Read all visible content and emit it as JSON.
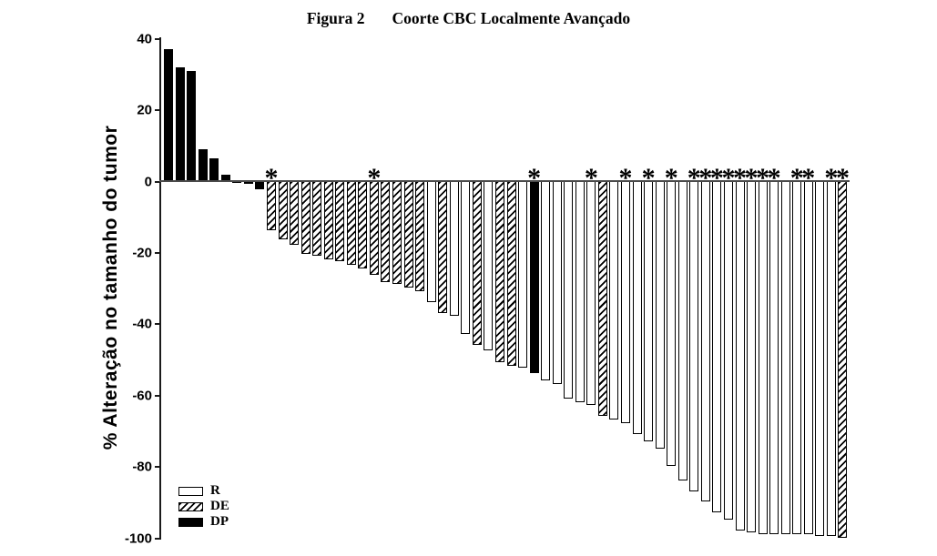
{
  "chart_data": {
    "type": "bar",
    "subtype": "waterfall",
    "figure_label": "Figura 2",
    "title": "Coorte CBC Localmente Avançado",
    "ylabel": "% Alteração no tamanho do tumor",
    "ylim": [
      -100,
      40
    ],
    "yticks": [
      40,
      20,
      0,
      -20,
      -40,
      -60,
      -80,
      -100
    ],
    "grid": false,
    "legend_position": "lower-left-inside",
    "asterisk_symbol": "*",
    "legend": [
      {
        "label": "R",
        "group": "R",
        "pattern": "solid-white"
      },
      {
        "label": "DE",
        "group": "DE",
        "pattern": "diagonal-hatch"
      },
      {
        "label": "DP",
        "group": "DP",
        "pattern": "solid-black"
      }
    ],
    "bars": [
      {
        "value": 37,
        "group": "DP",
        "asterisk": false
      },
      {
        "value": 32,
        "group": "DP",
        "asterisk": false
      },
      {
        "value": 31,
        "group": "DP",
        "asterisk": false
      },
      {
        "value": 9,
        "group": "DP",
        "asterisk": false
      },
      {
        "value": 6.5,
        "group": "DP",
        "asterisk": false
      },
      {
        "value": 2,
        "group": "DP",
        "asterisk": false
      },
      {
        "value": -0.7,
        "group": "DP",
        "asterisk": false
      },
      {
        "value": -1,
        "group": "DP",
        "asterisk": false
      },
      {
        "value": -2.5,
        "group": "DP",
        "asterisk": false
      },
      {
        "value": -14,
        "group": "DE",
        "asterisk": true
      },
      {
        "value": -16.5,
        "group": "DE",
        "asterisk": false
      },
      {
        "value": -18,
        "group": "DE",
        "asterisk": false
      },
      {
        "value": -20.5,
        "group": "DE",
        "asterisk": false
      },
      {
        "value": -21,
        "group": "DE",
        "asterisk": false
      },
      {
        "value": -22,
        "group": "DE",
        "asterisk": false
      },
      {
        "value": -22.5,
        "group": "DE",
        "asterisk": false
      },
      {
        "value": -23.5,
        "group": "DE",
        "asterisk": false
      },
      {
        "value": -24.5,
        "group": "DE",
        "asterisk": false
      },
      {
        "value": -26.5,
        "group": "DE",
        "asterisk": true
      },
      {
        "value": -28.5,
        "group": "DE",
        "asterisk": false
      },
      {
        "value": -29,
        "group": "DE",
        "asterisk": false
      },
      {
        "value": -30,
        "group": "DE",
        "asterisk": false
      },
      {
        "value": -31,
        "group": "DE",
        "asterisk": false
      },
      {
        "value": -34,
        "group": "R",
        "asterisk": false
      },
      {
        "value": -37,
        "group": "DE",
        "asterisk": false
      },
      {
        "value": -38,
        "group": "R",
        "asterisk": false
      },
      {
        "value": -43,
        "group": "R",
        "asterisk": false
      },
      {
        "value": -46,
        "group": "DE",
        "asterisk": false
      },
      {
        "value": -47.5,
        "group": "R",
        "asterisk": false
      },
      {
        "value": -51,
        "group": "DE",
        "asterisk": false
      },
      {
        "value": -52,
        "group": "DE",
        "asterisk": false
      },
      {
        "value": -52.5,
        "group": "R",
        "asterisk": false
      },
      {
        "value": -54,
        "group": "DP",
        "asterisk": true
      },
      {
        "value": -56,
        "group": "R",
        "asterisk": false
      },
      {
        "value": -57,
        "group": "R",
        "asterisk": false
      },
      {
        "value": -61,
        "group": "R",
        "asterisk": false
      },
      {
        "value": -62,
        "group": "R",
        "asterisk": false
      },
      {
        "value": -63,
        "group": "R",
        "asterisk": true
      },
      {
        "value": -66,
        "group": "DE",
        "asterisk": false
      },
      {
        "value": -67,
        "group": "R",
        "asterisk": false
      },
      {
        "value": -68,
        "group": "R",
        "asterisk": true
      },
      {
        "value": -71,
        "group": "R",
        "asterisk": false
      },
      {
        "value": -73,
        "group": "R",
        "asterisk": true
      },
      {
        "value": -75,
        "group": "R",
        "asterisk": false
      },
      {
        "value": -80,
        "group": "R",
        "asterisk": true
      },
      {
        "value": -84,
        "group": "R",
        "asterisk": false
      },
      {
        "value": -87,
        "group": "R",
        "asterisk": true
      },
      {
        "value": -90,
        "group": "R",
        "asterisk": true
      },
      {
        "value": -93,
        "group": "R",
        "asterisk": true
      },
      {
        "value": -95,
        "group": "R",
        "asterisk": true
      },
      {
        "value": -98,
        "group": "R",
        "asterisk": true
      },
      {
        "value": -98.5,
        "group": "R",
        "asterisk": true
      },
      {
        "value": -99,
        "group": "R",
        "asterisk": true
      },
      {
        "value": -99,
        "group": "R",
        "asterisk": true
      },
      {
        "value": -99,
        "group": "R",
        "asterisk": false
      },
      {
        "value": -99,
        "group": "R",
        "asterisk": true
      },
      {
        "value": -99,
        "group": "R",
        "asterisk": true
      },
      {
        "value": -99.5,
        "group": "R",
        "asterisk": false
      },
      {
        "value": -99.5,
        "group": "R",
        "asterisk": true
      },
      {
        "value": -100,
        "group": "DE",
        "asterisk": true
      }
    ]
  },
  "colors": {
    "background": "#ffffff",
    "bar_outline": "#000000",
    "bar_fill_white": "#ffffff",
    "bar_fill_black": "#000000",
    "hatch_line": "#000000",
    "axis": "#1a1a1a",
    "text": "#000000"
  }
}
